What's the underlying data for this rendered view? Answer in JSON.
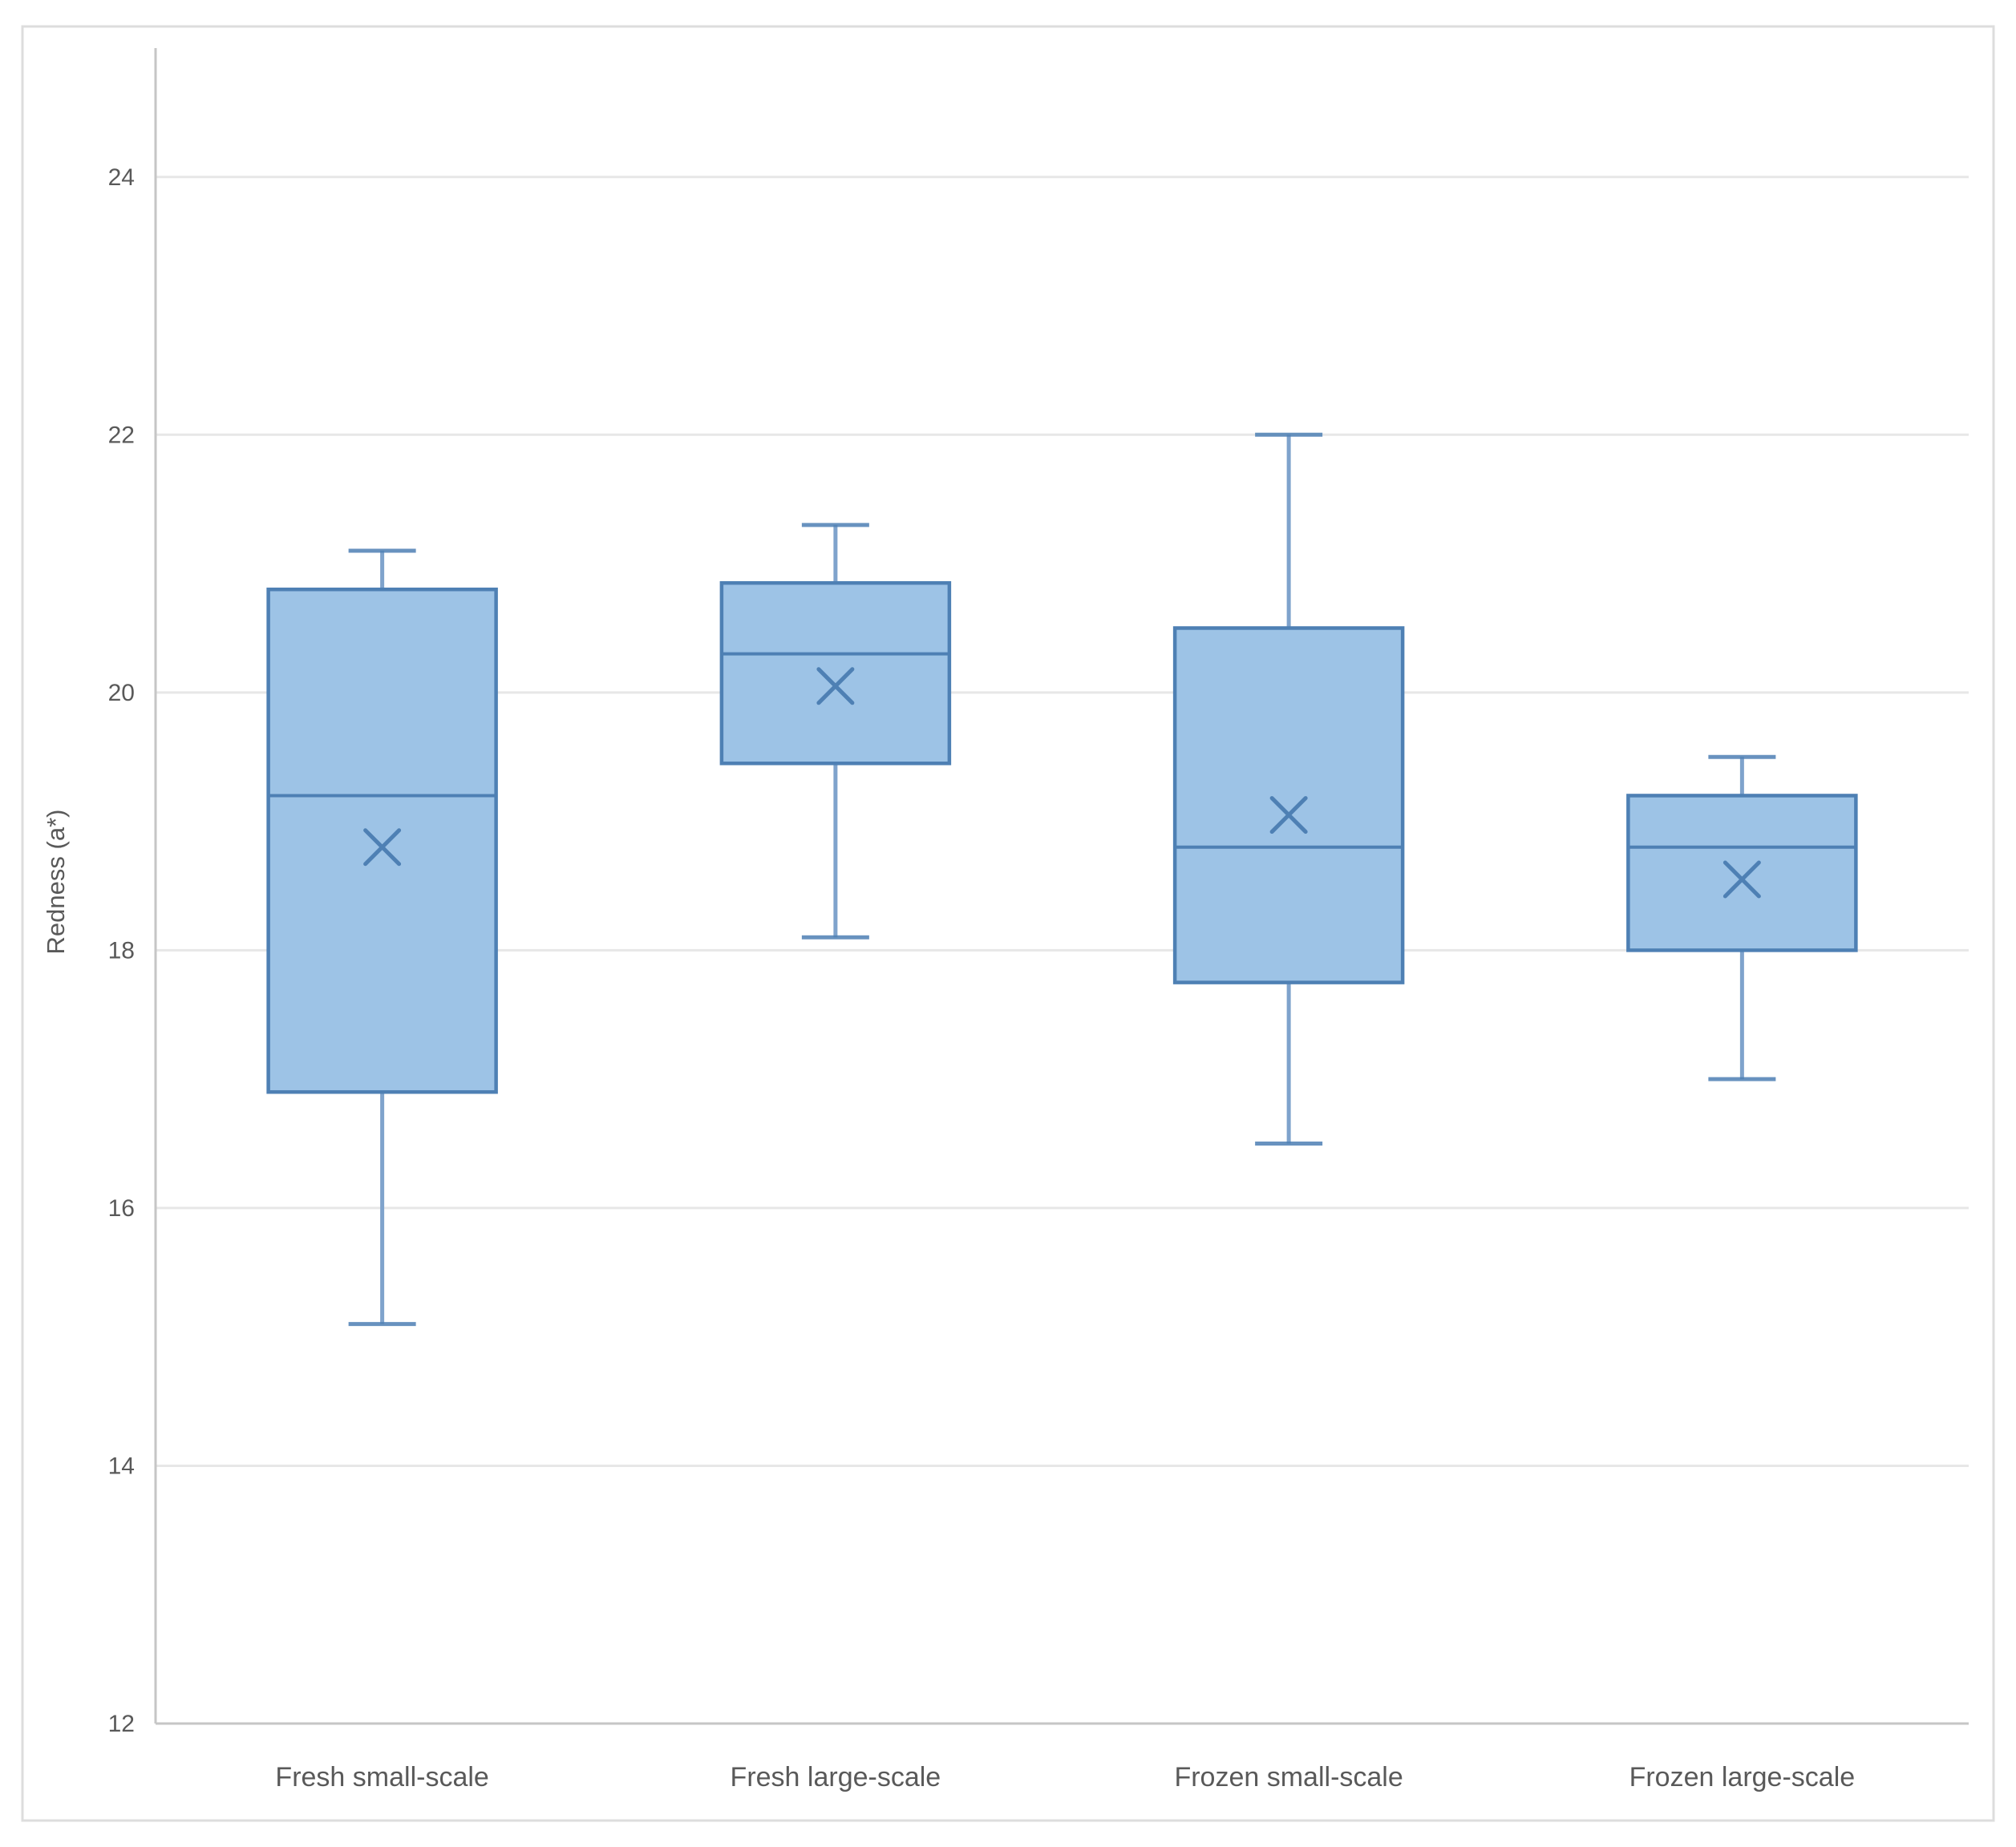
{
  "chart_data": {
    "type": "boxplot",
    "title": "",
    "xlabel": "",
    "ylabel": "Redness (a*)",
    "categories": [
      "Fresh small-scale",
      "Fresh large-scale",
      "Frozen small-scale",
      "Frozen large-scale"
    ],
    "series": [
      {
        "name": "Fresh small-scale",
        "min": 15.1,
        "q1": 16.9,
        "median": 19.2,
        "mean": 18.8,
        "q3": 20.8,
        "max": 21.1
      },
      {
        "name": "Fresh large-scale",
        "min": 18.1,
        "q1": 19.45,
        "median": 20.3,
        "mean": 20.05,
        "q3": 20.85,
        "max": 21.3
      },
      {
        "name": "Frozen small-scale",
        "min": 16.5,
        "q1": 17.75,
        "median": 18.8,
        "mean": 19.05,
        "q3": 20.5,
        "max": 22.0
      },
      {
        "name": "Frozen large-scale",
        "min": 17.0,
        "q1": 18.0,
        "median": 18.8,
        "mean": 18.55,
        "q3": 19.2,
        "max": 19.5
      }
    ],
    "y_axis": {
      "min": 12,
      "max": 25,
      "tick_step": 2,
      "ticks": [
        12,
        14,
        16,
        18,
        20,
        22,
        24
      ],
      "label": "Redness (a*)"
    },
    "grid": true,
    "legend": "none",
    "colors": {
      "box_fill": "#9DC3E6",
      "box_stroke": "#4E80B4",
      "whisker_line": "#7FA3CC",
      "mean_marker": "#4E80B4",
      "gridline": "#E7E7E7",
      "axis_line": "#C6C6C6",
      "chart_border": "#DDDDDD",
      "text": "#595959",
      "background": "#FFFFFF"
    }
  }
}
